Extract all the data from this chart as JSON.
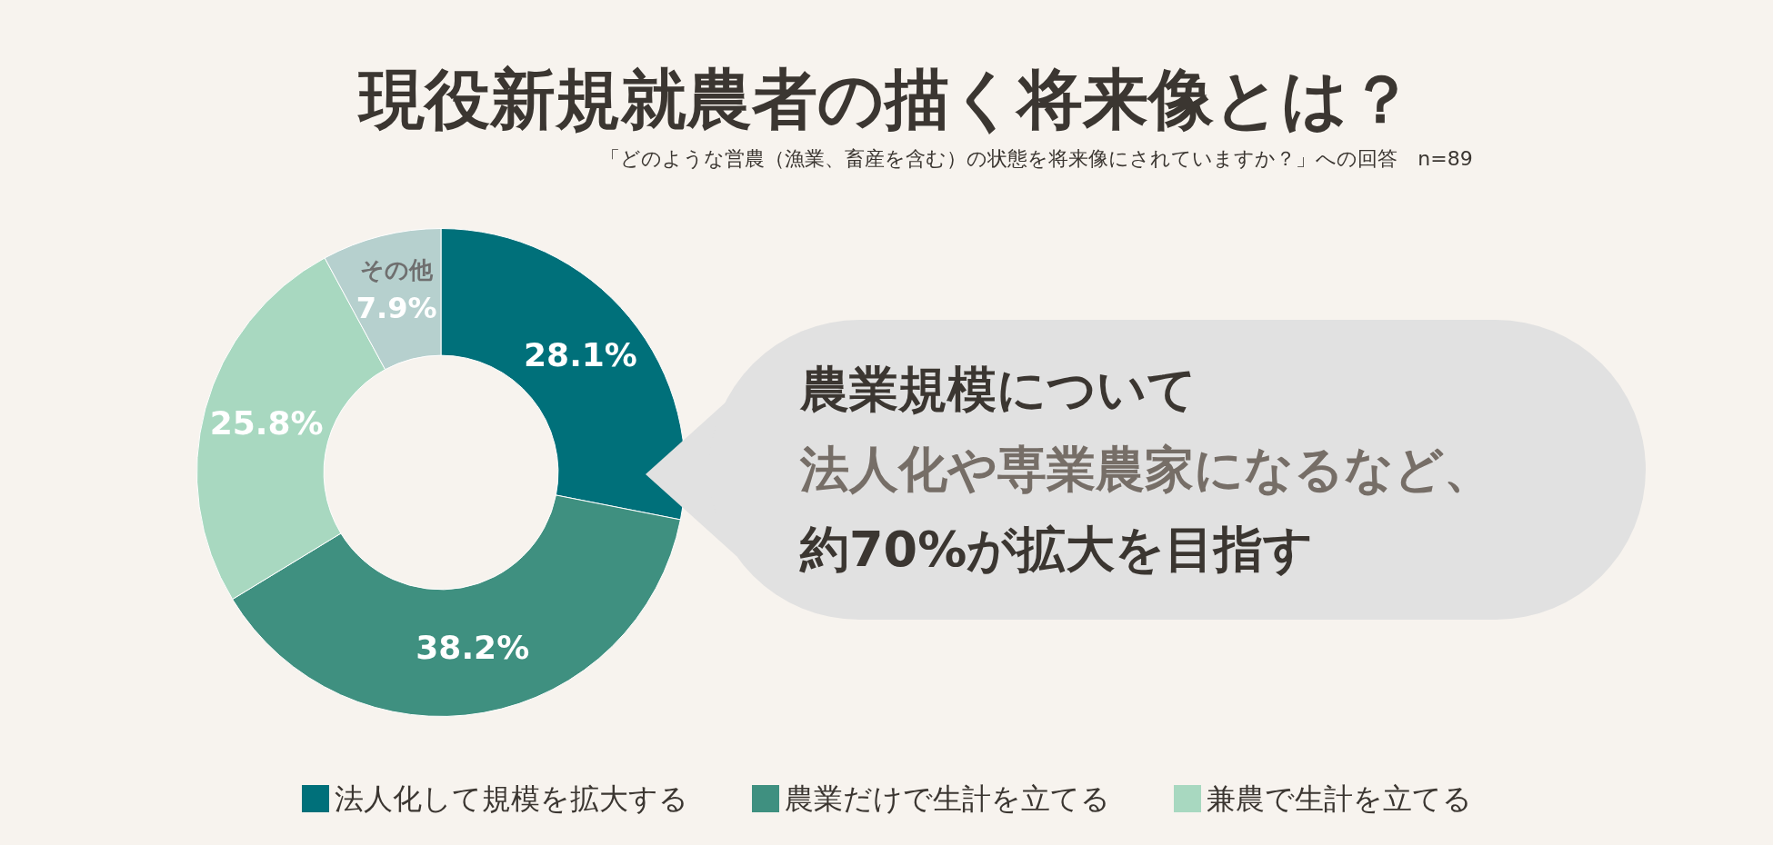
{
  "chart_data": {
    "type": "donut",
    "title": "現役新規就農者の描く将来像とは？",
    "subtitle": "「どのような営農（漁業、畜産を含む）の状態を将来像にされていますか？」への回答　n=89",
    "categories": [
      "法人化して規模を拡大する",
      "農業だけで生計を立てる",
      "兼農で生計を立てる",
      "その他"
    ],
    "values": [
      28.1,
      38.2,
      25.8,
      7.9
    ],
    "value_labels": [
      "28.1%",
      "38.2%",
      "25.8%",
      "7.9%"
    ],
    "colors": [
      "#00707a",
      "#3f9080",
      "#a8d8c0",
      "#b6d0ce"
    ],
    "legend": "bottom",
    "annotations": [
      "農業規模について",
      "法人化や専業農家になるなど、",
      "約70%が拡大を目指す"
    ]
  }
}
